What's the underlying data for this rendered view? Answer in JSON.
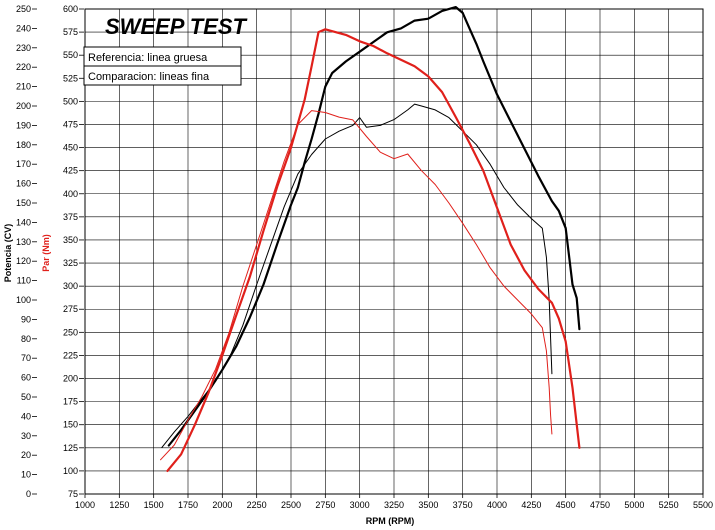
{
  "chart_data": {
    "type": "line",
    "title": "SWEEP TEST",
    "legend": [
      "Referencia: linea gruesa",
      "Comparacion: lineas fina"
    ],
    "xlabel": "RPM (RPM)",
    "ylabel_left": "Potencia (CV)",
    "ylabel_right": "Par (Nm)",
    "x_ticks": [
      "1000",
      "1250",
      "1500",
      "1750",
      "2000",
      "2250",
      "2500",
      "2750",
      "3000",
      "3250",
      "3500",
      "3750",
      "4000",
      "4250",
      "4500",
      "4750",
      "5000",
      "5250",
      "5500"
    ],
    "y_left_ticks": [
      "250",
      "240",
      "230",
      "220",
      "210",
      "200",
      "190",
      "180",
      "170",
      "160",
      "150",
      "140",
      "130",
      "120",
      "110",
      "100",
      "90",
      "80",
      "70",
      "60",
      "50",
      "40",
      "30",
      "20",
      "10",
      "0"
    ],
    "y_right_ticks": [
      "600",
      "575",
      "550",
      "525",
      "500",
      "475",
      "450",
      "425",
      "400",
      "375",
      "350",
      "325",
      "300",
      "275",
      "250",
      "225",
      "200",
      "175",
      "150",
      "125",
      "100",
      "75"
    ],
    "xlim": [
      1000,
      5500
    ],
    "ylim_left": [
      0,
      250
    ],
    "ylim_right": [
      75,
      600
    ],
    "colors": {
      "power": "#000000",
      "torque": "#e0201b",
      "grid": "#000000"
    },
    "series": [
      {
        "name": "Potencia referencia (linea gruesa)",
        "axis": "left",
        "color": "#000000",
        "weight": "thick",
        "x": [
          1610,
          1700,
          1800,
          1900,
          2000,
          2100,
          2200,
          2300,
          2400,
          2500,
          2550,
          2600,
          2650,
          2700,
          2750,
          2800,
          2900,
          3000,
          3100,
          3200,
          3300,
          3400,
          3500,
          3600,
          3700,
          3750,
          3800,
          3850,
          3900,
          4000,
          4100,
          4200,
          4300,
          4400,
          4450,
          4500,
          4550,
          4580,
          4600
        ],
        "y": [
          25,
          33,
          43,
          53,
          64,
          76,
          91,
          108,
          129,
          149,
          158,
          171,
          183,
          196,
          210,
          217,
          223,
          228,
          233,
          238,
          240,
          244,
          245,
          249,
          251,
          248,
          240,
          232,
          223,
          206,
          192,
          178,
          164,
          151,
          146,
          137,
          108,
          101,
          85
        ]
      },
      {
        "name": "Potencia comparacion (linea fina)",
        "axis": "left",
        "color": "#000000",
        "weight": "thin",
        "x": [
          1560,
          1650,
          1750,
          1850,
          1950,
          2050,
          2150,
          2250,
          2350,
          2450,
          2550,
          2650,
          2750,
          2850,
          2950,
          3000,
          3050,
          3150,
          3250,
          3350,
          3400,
          3450,
          3550,
          3650,
          3750,
          3850,
          3950,
          4050,
          4150,
          4250,
          4330,
          4360,
          4380,
          4390,
          4400
        ],
        "y": [
          24,
          32,
          40,
          49,
          58,
          70,
          87,
          108,
          128,
          148,
          165,
          175,
          183,
          187,
          190,
          194,
          189,
          190,
          193,
          198,
          201,
          200,
          198,
          194,
          187,
          180,
          170,
          158,
          149,
          142,
          137,
          122,
          100,
          80,
          62
        ]
      },
      {
        "name": "Par referencia (linea gruesa)",
        "axis": "right",
        "color": "#e0201b",
        "weight": "thick",
        "x": [
          1600,
          1700,
          1800,
          1900,
          2000,
          2100,
          2200,
          2300,
          2400,
          2500,
          2600,
          2650,
          2700,
          2750,
          2800,
          2900,
          3000,
          3100,
          3200,
          3300,
          3400,
          3500,
          3600,
          3700,
          3800,
          3900,
          4000,
          4100,
          4200,
          4300,
          4400,
          4450,
          4500,
          4550,
          4600
        ],
        "y": [
          100,
          118,
          150,
          185,
          225,
          268,
          310,
          360,
          408,
          450,
          502,
          538,
          575,
          578,
          576,
          572,
          565,
          560,
          552,
          545,
          538,
          527,
          510,
          483,
          455,
          425,
          385,
          345,
          317,
          297,
          282,
          265,
          240,
          190,
          125
        ]
      },
      {
        "name": "Par comparacion (linea fina)",
        "axis": "right",
        "color": "#e0201b",
        "weight": "thin",
        "x": [
          1550,
          1650,
          1750,
          1850,
          1950,
          2050,
          2150,
          2250,
          2350,
          2450,
          2550,
          2650,
          2750,
          2850,
          2950,
          3050,
          3150,
          3250,
          3350,
          3450,
          3550,
          3650,
          3750,
          3850,
          3950,
          4050,
          4150,
          4250,
          4330,
          4360,
          4380,
          4390,
          4400
        ],
        "y": [
          112,
          128,
          155,
          180,
          210,
          250,
          300,
          345,
          390,
          435,
          475,
          490,
          488,
          483,
          480,
          462,
          445,
          438,
          443,
          425,
          410,
          390,
          368,
          345,
          320,
          300,
          285,
          270,
          255,
          230,
          190,
          160,
          140
        ]
      }
    ]
  }
}
